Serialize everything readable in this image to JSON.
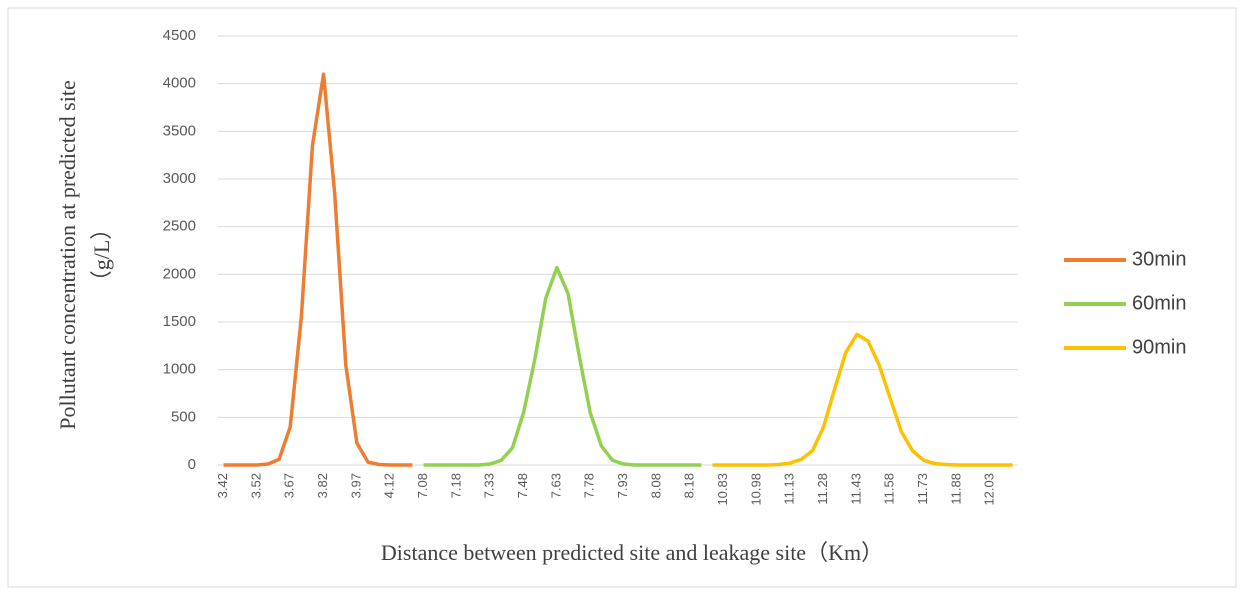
{
  "chart_data": {
    "type": "line",
    "y_label": [
      "Pollutant concentration at predicted site",
      "（g/L）"
    ],
    "x_label": "Distance between predicted site and leakage site（Km）",
    "categories": [
      "3.42",
      null,
      null,
      "3.52",
      null,
      null,
      "3.67",
      null,
      null,
      "3.82",
      null,
      null,
      "3.97",
      null,
      null,
      "4.12",
      null,
      null,
      "7.08",
      null,
      null,
      "7.18",
      null,
      null,
      "7.33",
      null,
      null,
      "7.48",
      null,
      null,
      "7.63",
      null,
      null,
      "7.78",
      null,
      null,
      "7.93",
      null,
      null,
      "8.08",
      null,
      null,
      "8.18",
      null,
      null,
      "10.83",
      null,
      null,
      "10.98",
      null,
      null,
      "11.13",
      null,
      null,
      "11.28",
      null,
      null,
      "11.43",
      null,
      null,
      "11.58",
      null,
      null,
      "11.73",
      null,
      null,
      "11.88",
      null,
      null,
      "12.03",
      null,
      null
    ],
    "series": [
      {
        "name": "30min",
        "color": "#ED7D31",
        "values": [
          0,
          0,
          0,
          0,
          10,
          60,
          400,
          1550,
          3350,
          4100,
          2850,
          1050,
          230,
          30,
          5,
          0,
          0,
          0,
          null,
          null,
          null,
          null,
          null,
          null,
          null,
          null,
          null,
          null,
          null,
          null,
          null,
          null,
          null,
          null,
          null,
          null,
          null,
          null,
          null,
          null,
          null,
          null,
          null,
          null,
          null,
          null,
          null,
          null,
          null,
          null,
          null,
          null,
          null,
          null,
          null,
          null,
          null,
          null,
          null,
          null,
          null,
          null,
          null,
          null,
          null,
          null,
          null,
          null,
          null,
          null,
          null,
          null
        ]
      },
      {
        "name": "60min",
        "color": "#92D050",
        "values": [
          null,
          null,
          null,
          null,
          null,
          null,
          null,
          null,
          null,
          null,
          null,
          null,
          null,
          null,
          null,
          null,
          null,
          null,
          0,
          0,
          0,
          0,
          0,
          0,
          10,
          50,
          180,
          550,
          1100,
          1750,
          2070,
          1800,
          1150,
          550,
          200,
          50,
          10,
          0,
          0,
          0,
          0,
          0,
          0,
          0,
          null,
          null,
          null,
          null,
          null,
          null,
          null,
          null,
          null,
          null,
          null,
          null,
          null,
          null,
          null,
          null,
          null,
          null,
          null,
          null,
          null,
          null,
          null,
          null,
          null,
          null,
          null,
          null
        ]
      },
      {
        "name": "90min",
        "color": "#FFC000",
        "values": [
          null,
          null,
          null,
          null,
          null,
          null,
          null,
          null,
          null,
          null,
          null,
          null,
          null,
          null,
          null,
          null,
          null,
          null,
          null,
          null,
          null,
          null,
          null,
          null,
          null,
          null,
          null,
          null,
          null,
          null,
          null,
          null,
          null,
          null,
          null,
          null,
          null,
          null,
          null,
          null,
          null,
          null,
          null,
          null,
          0,
          0,
          0,
          0,
          0,
          0,
          5,
          20,
          60,
          150,
          400,
          800,
          1180,
          1370,
          1300,
          1050,
          700,
          350,
          150,
          50,
          15,
          5,
          0,
          0,
          0,
          0,
          0,
          0
        ]
      }
    ],
    "ylim": [
      0,
      4500
    ],
    "yticks": [
      0,
      500,
      1000,
      1500,
      2000,
      2500,
      3000,
      3500,
      4000,
      4500
    ],
    "grid": true,
    "legend": "right"
  }
}
